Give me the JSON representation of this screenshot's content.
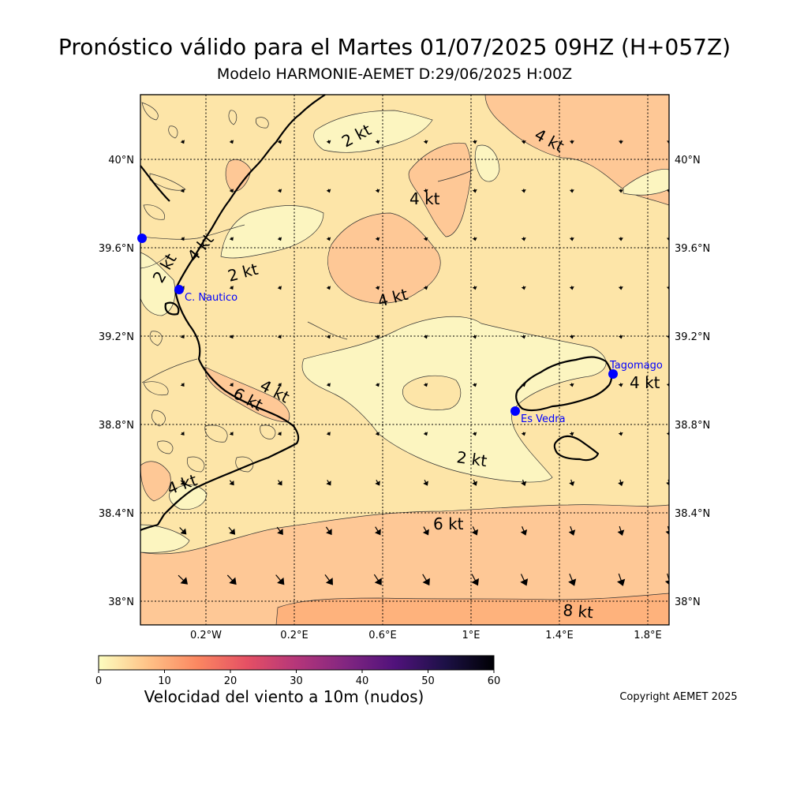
{
  "title": "Pronóstico válido para el Martes 01/07/2025 09HZ (H+057Z)",
  "subtitle": "Modelo HARMONIE-AEMET D:29/06/2025 H:00Z",
  "lat_labels": [
    "40°N",
    "39.6°N",
    "39.2°N",
    "38.8°N",
    "38.4°N",
    "38°N"
  ],
  "lon_labels": [
    "0.2°W",
    "0.2°E",
    "0.6°E",
    "1°E",
    "1.4°E",
    "1.8°E"
  ],
  "colorbar": {
    "ticks": [
      "0",
      "10",
      "20",
      "30",
      "40",
      "50",
      "60"
    ],
    "label": "Velocidad del viento a 10m (nudos)",
    "colors": [
      "#fcfdbf",
      "#fec287",
      "#fb8761",
      "#e55064",
      "#b5367a",
      "#822681",
      "#50127b",
      "#1d1147",
      "#000004"
    ]
  },
  "contour_labels": [
    {
      "text": "2 kt"
    },
    {
      "text": "4 kt"
    },
    {
      "text": "4 kt"
    },
    {
      "text": "2 kt"
    },
    {
      "text": "4 kt"
    },
    {
      "text": "2 kt"
    },
    {
      "text": "4 kt"
    },
    {
      "text": "4 kt"
    },
    {
      "text": "6 kt"
    },
    {
      "text": "4 kt"
    },
    {
      "text": "2 kt"
    },
    {
      "text": "4 kt"
    },
    {
      "text": "6 kt"
    },
    {
      "text": "8 kt"
    }
  ],
  "stations": [
    {
      "name": "C. Nautico"
    },
    {
      "name": "Tagomago"
    },
    {
      "name": "Es Vedra"
    }
  ],
  "station_color": "#0000ff",
  "copyright": "Copyright AEMET 2025"
}
